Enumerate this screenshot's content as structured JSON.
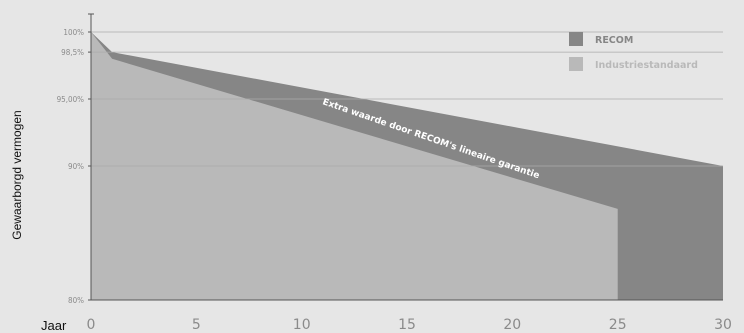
{
  "chart_data": {
    "type": "area",
    "xlabel": "Jaar",
    "ylabel": "Gewaarborgd vermogen",
    "xlim": [
      0,
      30
    ],
    "ylim": [
      80,
      100
    ],
    "x_ticks": [
      "0",
      "5",
      "10",
      "15",
      "20",
      "25",
      "30"
    ],
    "y_ticks": [
      {
        "value": 100,
        "label": "100%"
      },
      {
        "value": 98.5,
        "label": "98,5%"
      },
      {
        "value": 95,
        "label": "95,00%"
      },
      {
        "value": 90,
        "label": "90%"
      },
      {
        "value": 80,
        "label": "80%"
      }
    ],
    "series": [
      {
        "name": "RECOM",
        "color": "#868686",
        "points": [
          [
            0,
            100
          ],
          [
            1,
            98.5
          ],
          [
            30,
            90
          ],
          [
            30,
            80
          ]
        ]
      },
      {
        "name": "Industriestandaard",
        "color": "#b9b9b9",
        "points": [
          [
            0,
            100
          ],
          [
            1,
            98
          ],
          [
            25,
            86.8
          ],
          [
            25,
            80
          ]
        ]
      }
    ],
    "annotation": "Extra waarde door RECOM's lineaire garantie",
    "legend_position": "top-right",
    "grid": "horizontal"
  }
}
